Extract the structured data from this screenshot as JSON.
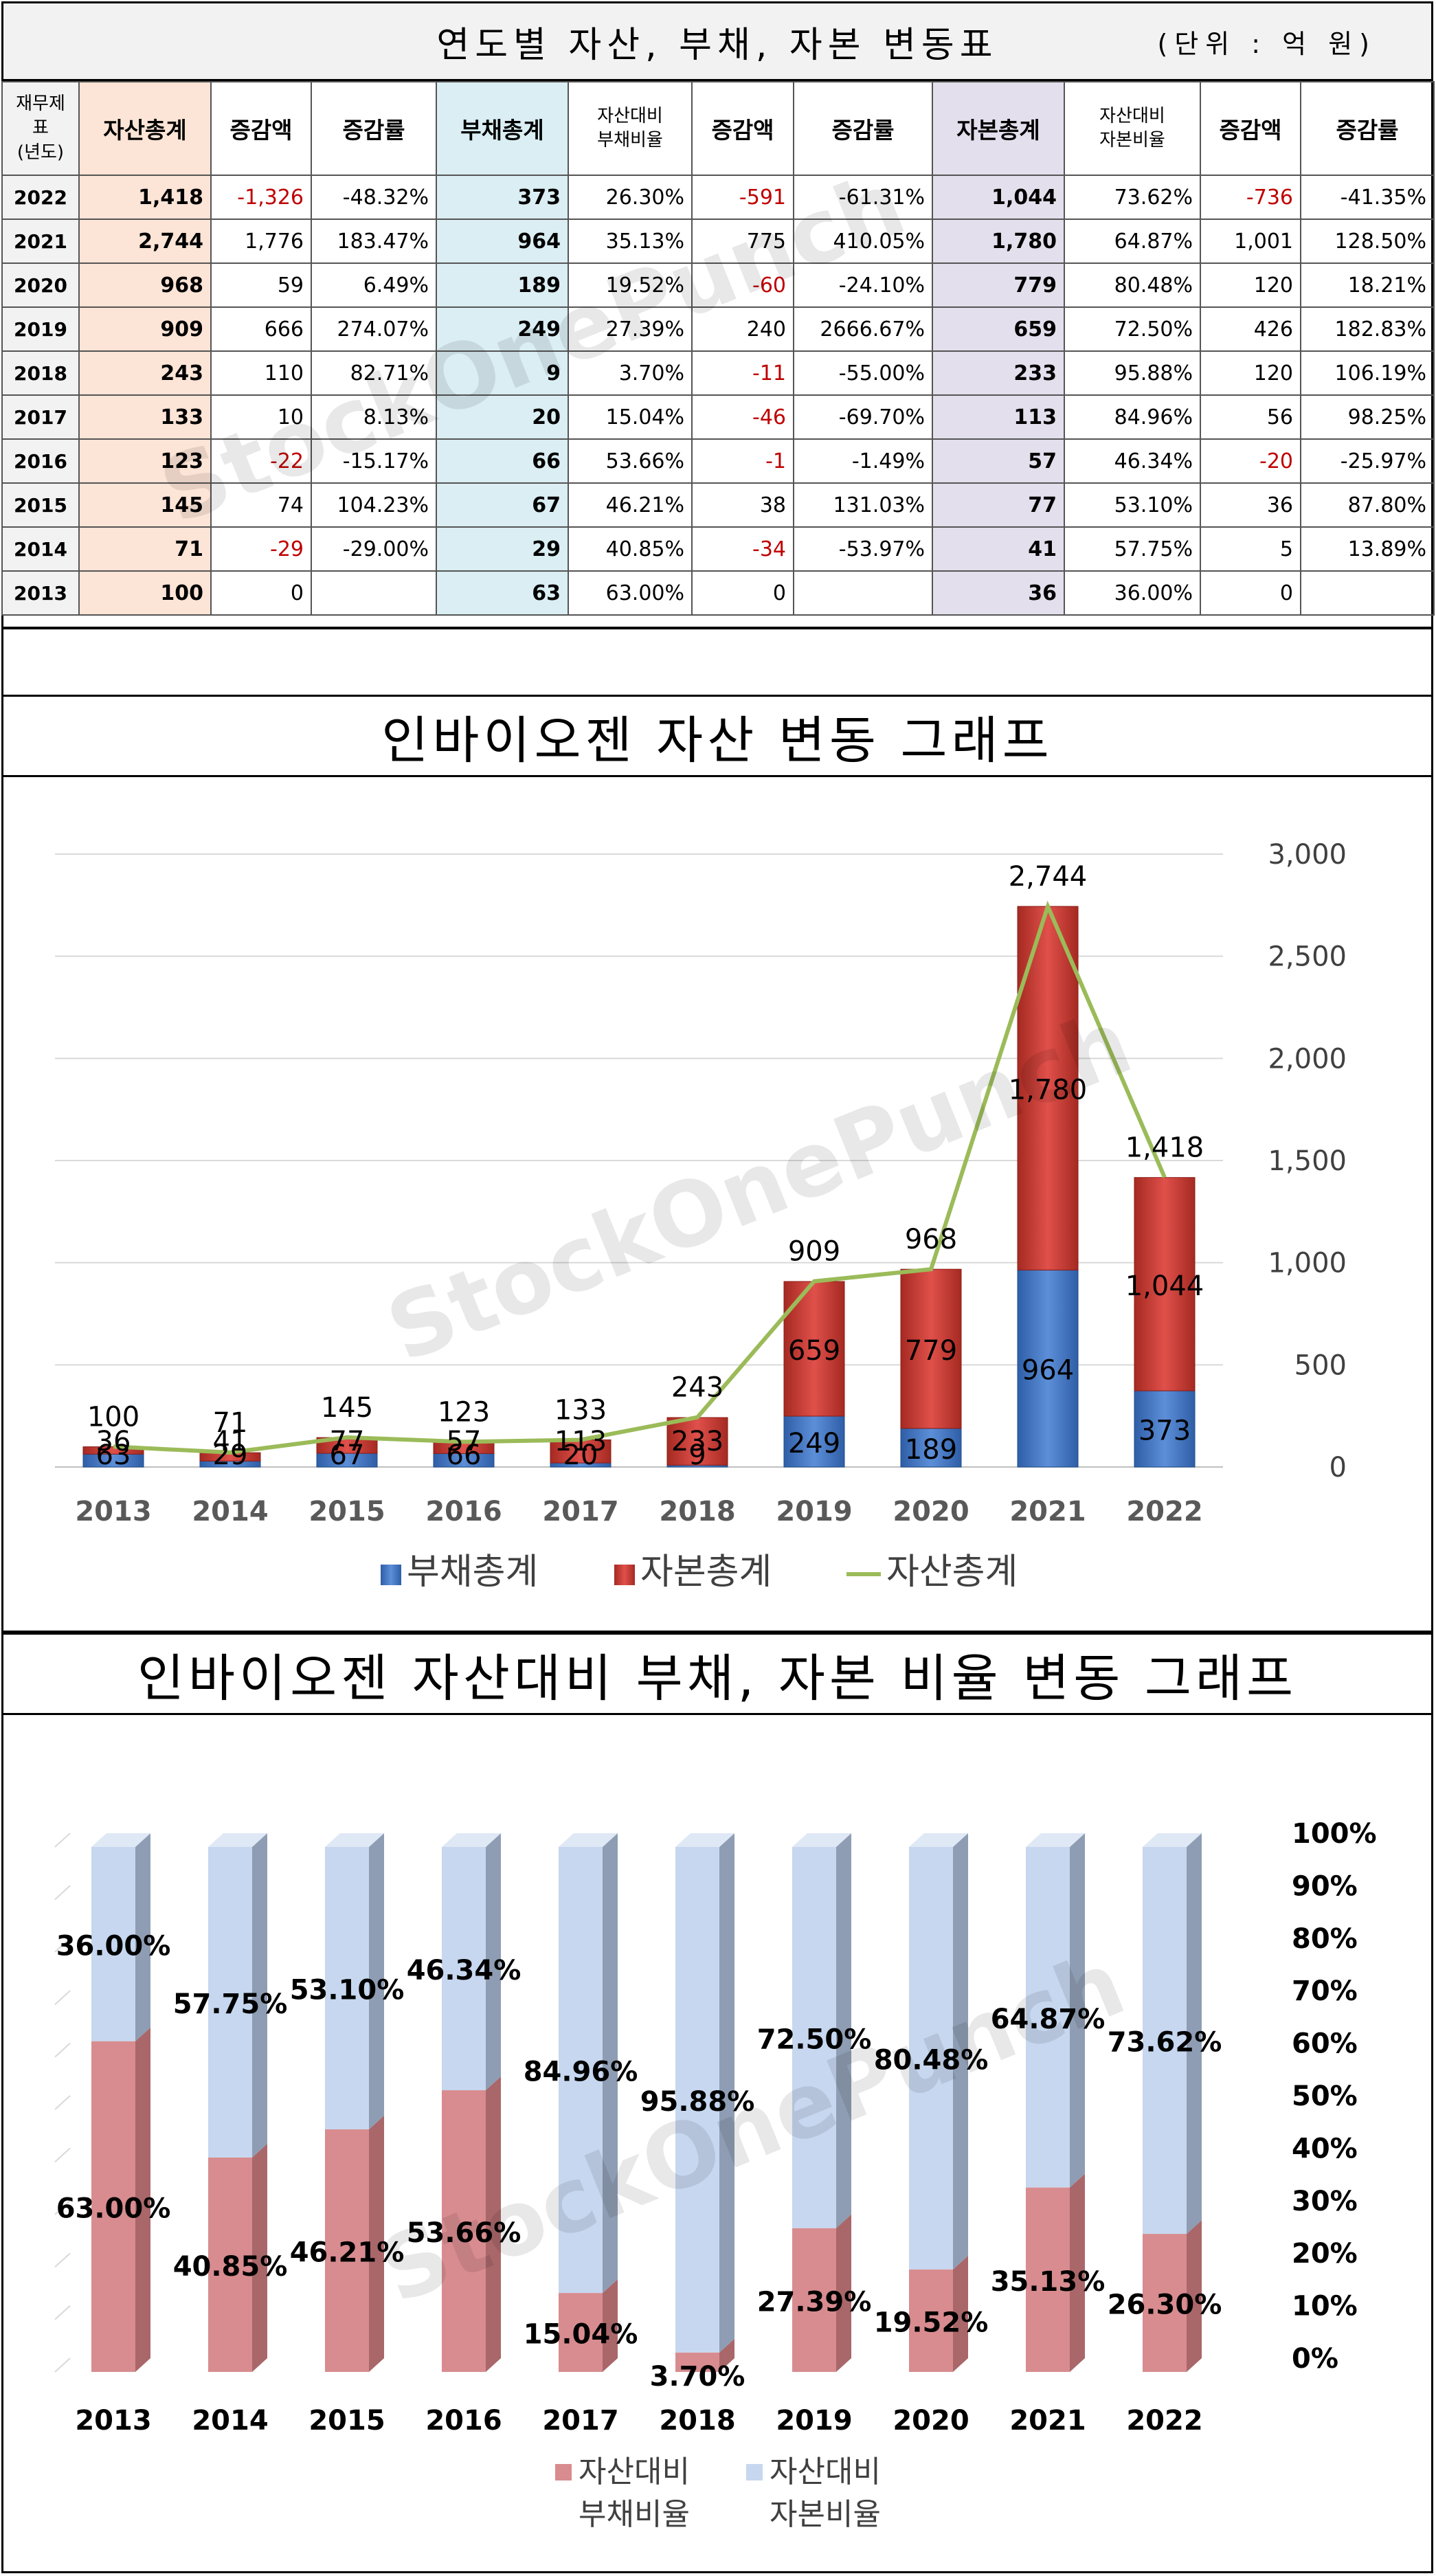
{
  "table_title": "연도별 자산, 부채, 자본 변동표",
  "table_unit": "(단위 : 억 원)",
  "watermark": "StockOnePunch",
  "table": {
    "headers": [
      "재무제표\n(년도)",
      "자산총계",
      "증감액",
      "증감률",
      "부채총계",
      "자산대비\n부채비율",
      "증감액",
      "증감률",
      "자본총계",
      "자산대비\n자본비율",
      "증감액",
      "증감률"
    ],
    "rows": [
      [
        "2022",
        "1,418",
        "-1,326",
        "-48.32%",
        "373",
        "26.30%",
        "-591",
        "-61.31%",
        "1,044",
        "73.62%",
        "-736",
        "-41.35%"
      ],
      [
        "2021",
        "2,744",
        "1,776",
        "183.47%",
        "964",
        "35.13%",
        "775",
        "410.05%",
        "1,780",
        "64.87%",
        "1,001",
        "128.50%"
      ],
      [
        "2020",
        "968",
        "59",
        "6.49%",
        "189",
        "19.52%",
        "-60",
        "-24.10%",
        "779",
        "80.48%",
        "120",
        "18.21%"
      ],
      [
        "2019",
        "909",
        "666",
        "274.07%",
        "249",
        "27.39%",
        "240",
        "2666.67%",
        "659",
        "72.50%",
        "426",
        "182.83%"
      ],
      [
        "2018",
        "243",
        "110",
        "82.71%",
        "9",
        "3.70%",
        "-11",
        "-55.00%",
        "233",
        "95.88%",
        "120",
        "106.19%"
      ],
      [
        "2017",
        "133",
        "10",
        "8.13%",
        "20",
        "15.04%",
        "-46",
        "-69.70%",
        "113",
        "84.96%",
        "56",
        "98.25%"
      ],
      [
        "2016",
        "123",
        "-22",
        "-15.17%",
        "66",
        "53.66%",
        "-1",
        "-1.49%",
        "57",
        "46.34%",
        "-20",
        "-25.97%"
      ],
      [
        "2015",
        "145",
        "74",
        "104.23%",
        "67",
        "46.21%",
        "38",
        "131.03%",
        "77",
        "53.10%",
        "36",
        "87.80%"
      ],
      [
        "2014",
        "71",
        "-29",
        "-29.00%",
        "29",
        "40.85%",
        "-34",
        "-53.97%",
        "41",
        "57.75%",
        "5",
        "13.89%"
      ],
      [
        "2013",
        "100",
        "0",
        "",
        "63",
        "63.00%",
        "0",
        "",
        "36",
        "36.00%",
        "0",
        ""
      ]
    ]
  },
  "colors": {
    "debt": "#3a6fc4",
    "capital": "#c0392b",
    "asset_line": "#9bbb59",
    "ratio_debt": "#e6999c",
    "ratio_cap": "#c6d7ef",
    "negative": "#c00000"
  },
  "chart_data": [
    {
      "type": "bar",
      "stacked": true,
      "title": "인바이오젠 자산 변동 그래프",
      "categories": [
        "2013",
        "2014",
        "2015",
        "2016",
        "2017",
        "2018",
        "2019",
        "2020",
        "2021",
        "2022"
      ],
      "series": [
        {
          "name": "부채총계",
          "values": [
            63,
            29,
            67,
            66,
            20,
            9,
            249,
            189,
            964,
            373
          ]
        },
        {
          "name": "자본총계",
          "values": [
            36,
            41,
            77,
            57,
            113,
            233,
            659,
            779,
            1780,
            1044
          ]
        },
        {
          "name": "자산총계",
          "kind": "line",
          "values": [
            100,
            71,
            145,
            123,
            133,
            243,
            909,
            968,
            2744,
            1418
          ]
        }
      ],
      "ylim": [
        0,
        3000
      ],
      "yticks": [
        "0",
        "500",
        "1,000",
        "1,500",
        "2,000",
        "2,500",
        "3,000"
      ],
      "y_axis_side": "right",
      "grid": true,
      "legend": "bottom"
    },
    {
      "type": "bar",
      "stacked": true,
      "percent": true,
      "title": "인바이오젠 자산대비 부채, 자본 비율 변동 그래프",
      "categories": [
        "2013",
        "2014",
        "2015",
        "2016",
        "2017",
        "2018",
        "2019",
        "2020",
        "2021",
        "2022"
      ],
      "series": [
        {
          "name": "자산대비\n부채비율",
          "values": [
            63.0,
            40.85,
            46.21,
            53.66,
            15.04,
            3.7,
            27.39,
            19.52,
            35.13,
            26.3
          ]
        },
        {
          "name": "자산대비\n자본비율",
          "values": [
            36.0,
            57.75,
            53.1,
            46.34,
            84.96,
            95.88,
            72.5,
            80.48,
            64.87,
            73.62
          ]
        }
      ],
      "ylim": [
        0,
        100
      ],
      "yticks": [
        "0%",
        "10%",
        "20%",
        "30%",
        "40%",
        "50%",
        "60%",
        "70%",
        "80%",
        "90%",
        "100%"
      ],
      "y_axis_side": "right",
      "legend": "bottom"
    }
  ]
}
